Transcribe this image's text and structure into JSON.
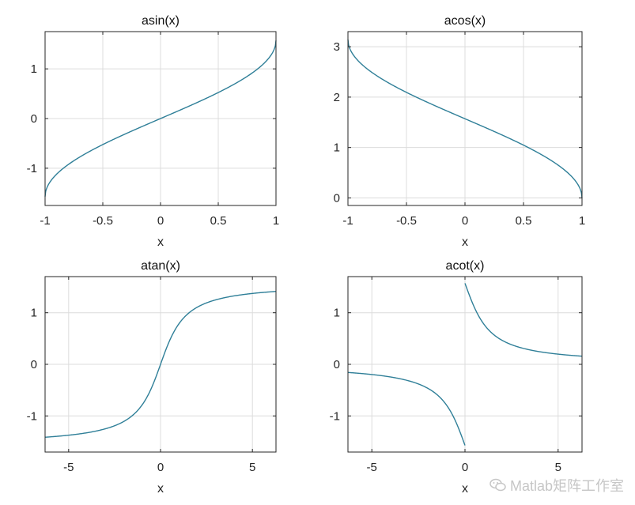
{
  "watermark": {
    "text": "Matlab矩阵工作室",
    "icon": "wechat-icon"
  },
  "colors": {
    "series": "#2f7f98",
    "axis": "#262626",
    "grid": "#dcdcdc"
  },
  "chart_data": [
    {
      "type": "line",
      "title": "asin(x)",
      "xlabel": "x",
      "ylabel": "",
      "function": "asin",
      "xlim": [
        -1,
        1
      ],
      "ylim": [
        -1.75,
        1.75
      ],
      "xticks": [
        -1,
        -0.5,
        0,
        0.5,
        1
      ],
      "xticklabels": [
        "-1",
        "-0.5",
        "0",
        "0.5",
        "1"
      ],
      "yticks": [
        -1,
        0,
        1
      ],
      "yticklabels": [
        "-1",
        "0",
        "1"
      ],
      "grid": true,
      "series": [
        {
          "x": [
            -1,
            -0.9,
            -0.8,
            -0.7,
            -0.6,
            -0.5,
            -0.4,
            -0.3,
            -0.2,
            -0.1,
            0,
            0.1,
            0.2,
            0.3,
            0.4,
            0.5,
            0.6,
            0.7,
            0.8,
            0.9,
            1
          ],
          "y": [
            -1.571,
            -1.12,
            -0.927,
            -0.775,
            -0.644,
            -0.524,
            -0.412,
            -0.305,
            -0.201,
            -0.1,
            0,
            0.1,
            0.201,
            0.305,
            0.412,
            0.524,
            0.644,
            0.775,
            0.927,
            1.12,
            1.571
          ]
        }
      ]
    },
    {
      "type": "line",
      "title": "acos(x)",
      "xlabel": "x",
      "ylabel": "",
      "function": "acos",
      "xlim": [
        -1,
        1
      ],
      "ylim": [
        -0.15,
        3.3
      ],
      "xticks": [
        -1,
        -0.5,
        0,
        0.5,
        1
      ],
      "xticklabels": [
        "-1",
        "-0.5",
        "0",
        "0.5",
        "1"
      ],
      "yticks": [
        0,
        1,
        2,
        3
      ],
      "yticklabels": [
        "0",
        "1",
        "2",
        "3"
      ],
      "grid": true,
      "series": [
        {
          "x": [
            -1,
            -0.9,
            -0.8,
            -0.7,
            -0.6,
            -0.5,
            -0.4,
            -0.3,
            -0.2,
            -0.1,
            0,
            0.1,
            0.2,
            0.3,
            0.4,
            0.5,
            0.6,
            0.7,
            0.8,
            0.9,
            1
          ],
          "y": [
            3.142,
            2.691,
            2.498,
            2.346,
            2.214,
            2.094,
            1.982,
            1.875,
            1.772,
            1.671,
            1.571,
            1.471,
            1.369,
            1.266,
            1.159,
            1.047,
            0.927,
            0.795,
            0.644,
            0.451,
            0
          ]
        }
      ]
    },
    {
      "type": "line",
      "title": "atan(x)",
      "xlabel": "x",
      "ylabel": "",
      "function": "atan",
      "xlim": [
        -6.283,
        6.283
      ],
      "ylim": [
        -1.7,
        1.7
      ],
      "xticks": [
        -5,
        0,
        5
      ],
      "xticklabels": [
        "-5",
        "0",
        "5"
      ],
      "yticks": [
        -1,
        0,
        1
      ],
      "yticklabels": [
        "-1",
        "0",
        "1"
      ],
      "grid": true,
      "series": [
        {
          "x": [
            -6.283,
            -5,
            -4,
            -3,
            -2,
            -1.5,
            -1,
            -0.5,
            0,
            0.5,
            1,
            1.5,
            2,
            3,
            4,
            5,
            6.283
          ],
          "y": [
            -1.413,
            -1.373,
            -1.326,
            -1.249,
            -1.107,
            -0.983,
            -0.785,
            -0.464,
            0,
            0.464,
            0.785,
            0.983,
            1.107,
            1.249,
            1.326,
            1.373,
            1.413
          ]
        }
      ]
    },
    {
      "type": "line",
      "title": "acot(x)",
      "xlabel": "x",
      "ylabel": "",
      "function": "acot",
      "xlim": [
        -6.283,
        6.283
      ],
      "ylim": [
        -1.7,
        1.7
      ],
      "xticks": [
        -5,
        0,
        5
      ],
      "xticklabels": [
        "-5",
        "0",
        "5"
      ],
      "yticks": [
        -1,
        0,
        1
      ],
      "yticklabels": [
        "-1",
        "0",
        "1"
      ],
      "grid": true,
      "series": [
        {
          "x": [
            -6.283,
            -5,
            -4,
            -3,
            -2,
            -1,
            -0.5,
            -0.2,
            -0.05,
            0,
            0.05,
            0.2,
            0.5,
            1,
            2,
            3,
            4,
            5,
            6.283
          ],
          "y": [
            -0.158,
            -0.197,
            -0.245,
            -0.322,
            -0.464,
            -0.785,
            -1.107,
            -1.373,
            -1.521,
            -1.571,
            1.521,
            1.373,
            1.107,
            0.785,
            0.464,
            0.322,
            0.245,
            0.197,
            0.158
          ]
        }
      ]
    }
  ]
}
